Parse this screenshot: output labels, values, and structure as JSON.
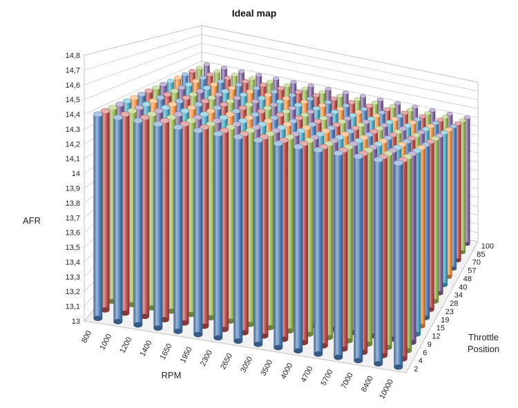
{
  "chart_data": {
    "type": "bar3d",
    "title": "Ideal map",
    "xlabel": "RPM",
    "ylabel": "AFR",
    "zlabel": [
      "Throttle",
      "Position"
    ],
    "x_categories": [
      "800",
      "1000",
      "1200",
      "1400",
      "1650",
      "1950",
      "2300",
      "2650",
      "3050",
      "3500",
      "4000",
      "4700",
      "5700",
      "7000",
      "8400",
      "10000"
    ],
    "z_categories": [
      "2",
      "4",
      "6",
      "9",
      "12",
      "15",
      "19",
      "23",
      "28",
      "34",
      "40",
      "48",
      "57",
      "70",
      "85",
      "100"
    ],
    "y_ticks": [
      "13",
      "13,1",
      "13,2",
      "13,3",
      "13,4",
      "13,5",
      "13,6",
      "13,7",
      "13,8",
      "13,9",
      "14",
      "14,1",
      "14,2",
      "14,3",
      "14,4",
      "14,5",
      "14,6",
      "14,7",
      "14,8"
    ],
    "ylim": [
      13,
      14.8
    ],
    "series_colors": [
      "#4f81bd",
      "#c0504d",
      "#9bbb59",
      "#8064a2",
      "#4bacc6",
      "#f79646",
      "#4f81bd",
      "#c0504d",
      "#9bbb59",
      "#8064a2",
      "#4bacc6",
      "#f79646",
      "#4f81bd",
      "#c0504d",
      "#9bbb59",
      "#8064a2"
    ],
    "values_by_throttle": [
      [
        14.4,
        14.4,
        14.4,
        14.4,
        14.4,
        14.4,
        14.4,
        14.4,
        14.4,
        14.4,
        14.4,
        14.4,
        14.4,
        14.4,
        14.4,
        14.4
      ],
      [
        14.4,
        14.4,
        14.4,
        14.4,
        14.4,
        14.4,
        14.4,
        14.4,
        14.4,
        14.4,
        14.4,
        14.4,
        14.4,
        14.4,
        14.4,
        14.4
      ],
      [
        14.4,
        14.4,
        14.4,
        14.4,
        14.4,
        14.4,
        14.4,
        14.4,
        14.4,
        14.4,
        14.4,
        14.4,
        14.4,
        14.4,
        14.4,
        14.4
      ],
      [
        14.4,
        14.4,
        14.4,
        14.4,
        14.4,
        14.4,
        14.4,
        14.4,
        14.4,
        14.4,
        14.4,
        14.4,
        14.4,
        14.4,
        14.4,
        14.4
      ],
      [
        14.4,
        14.4,
        14.4,
        14.4,
        14.4,
        14.4,
        14.4,
        14.4,
        14.4,
        14.4,
        14.4,
        14.4,
        14.4,
        14.4,
        14.4,
        14.4
      ],
      [
        14.4,
        14.4,
        14.4,
        14.4,
        14.4,
        14.4,
        14.4,
        14.4,
        14.4,
        14.4,
        14.4,
        14.4,
        14.4,
        14.4,
        14.4,
        14.4
      ],
      [
        14.4,
        14.4,
        14.4,
        14.4,
        14.4,
        14.4,
        14.4,
        14.4,
        14.4,
        14.4,
        14.4,
        14.4,
        14.4,
        14.4,
        14.4,
        14.4
      ],
      [
        14.4,
        14.4,
        14.4,
        14.4,
        14.4,
        14.4,
        14.4,
        14.4,
        14.4,
        14.4,
        14.4,
        14.4,
        14.4,
        14.4,
        14.4,
        14.4
      ],
      [
        14.4,
        14.4,
        14.4,
        14.4,
        14.4,
        14.4,
        14.4,
        14.4,
        14.4,
        14.4,
        14.4,
        14.4,
        14.4,
        14.4,
        14.4,
        14.4
      ],
      [
        14.4,
        14.4,
        14.4,
        14.4,
        14.4,
        14.4,
        14.4,
        14.4,
        14.4,
        14.4,
        14.4,
        14.4,
        14.4,
        14.4,
        14.4,
        14.4
      ],
      [
        14.4,
        14.4,
        14.4,
        14.4,
        14.4,
        14.4,
        14.4,
        14.4,
        14.4,
        14.4,
        14.4,
        14.4,
        14.4,
        14.4,
        14.4,
        14.4
      ],
      [
        14.4,
        14.4,
        14.4,
        14.4,
        14.4,
        14.4,
        14.4,
        14.4,
        14.4,
        14.4,
        14.4,
        14.4,
        14.4,
        14.4,
        14.4,
        14.4
      ],
      [
        14.4,
        14.4,
        14.4,
        14.4,
        14.4,
        14.4,
        14.4,
        14.4,
        14.4,
        14.4,
        14.4,
        14.4,
        14.4,
        14.4,
        14.4,
        14.4
      ],
      [
        14.4,
        14.4,
        14.4,
        14.4,
        14.4,
        14.4,
        14.4,
        14.4,
        14.4,
        14.4,
        14.4,
        14.4,
        14.4,
        14.4,
        14.4,
        14.4
      ],
      [
        14.4,
        14.4,
        14.4,
        14.4,
        14.4,
        14.4,
        14.4,
        14.4,
        14.4,
        14.4,
        14.4,
        14.4,
        14.4,
        14.4,
        14.4,
        14.4
      ],
      [
        14.4,
        14.4,
        14.4,
        14.4,
        14.4,
        14.4,
        14.4,
        14.4,
        14.4,
        14.4,
        14.4,
        14.4,
        14.4,
        14.4,
        14.4,
        14.4
      ]
    ],
    "grid": true
  }
}
